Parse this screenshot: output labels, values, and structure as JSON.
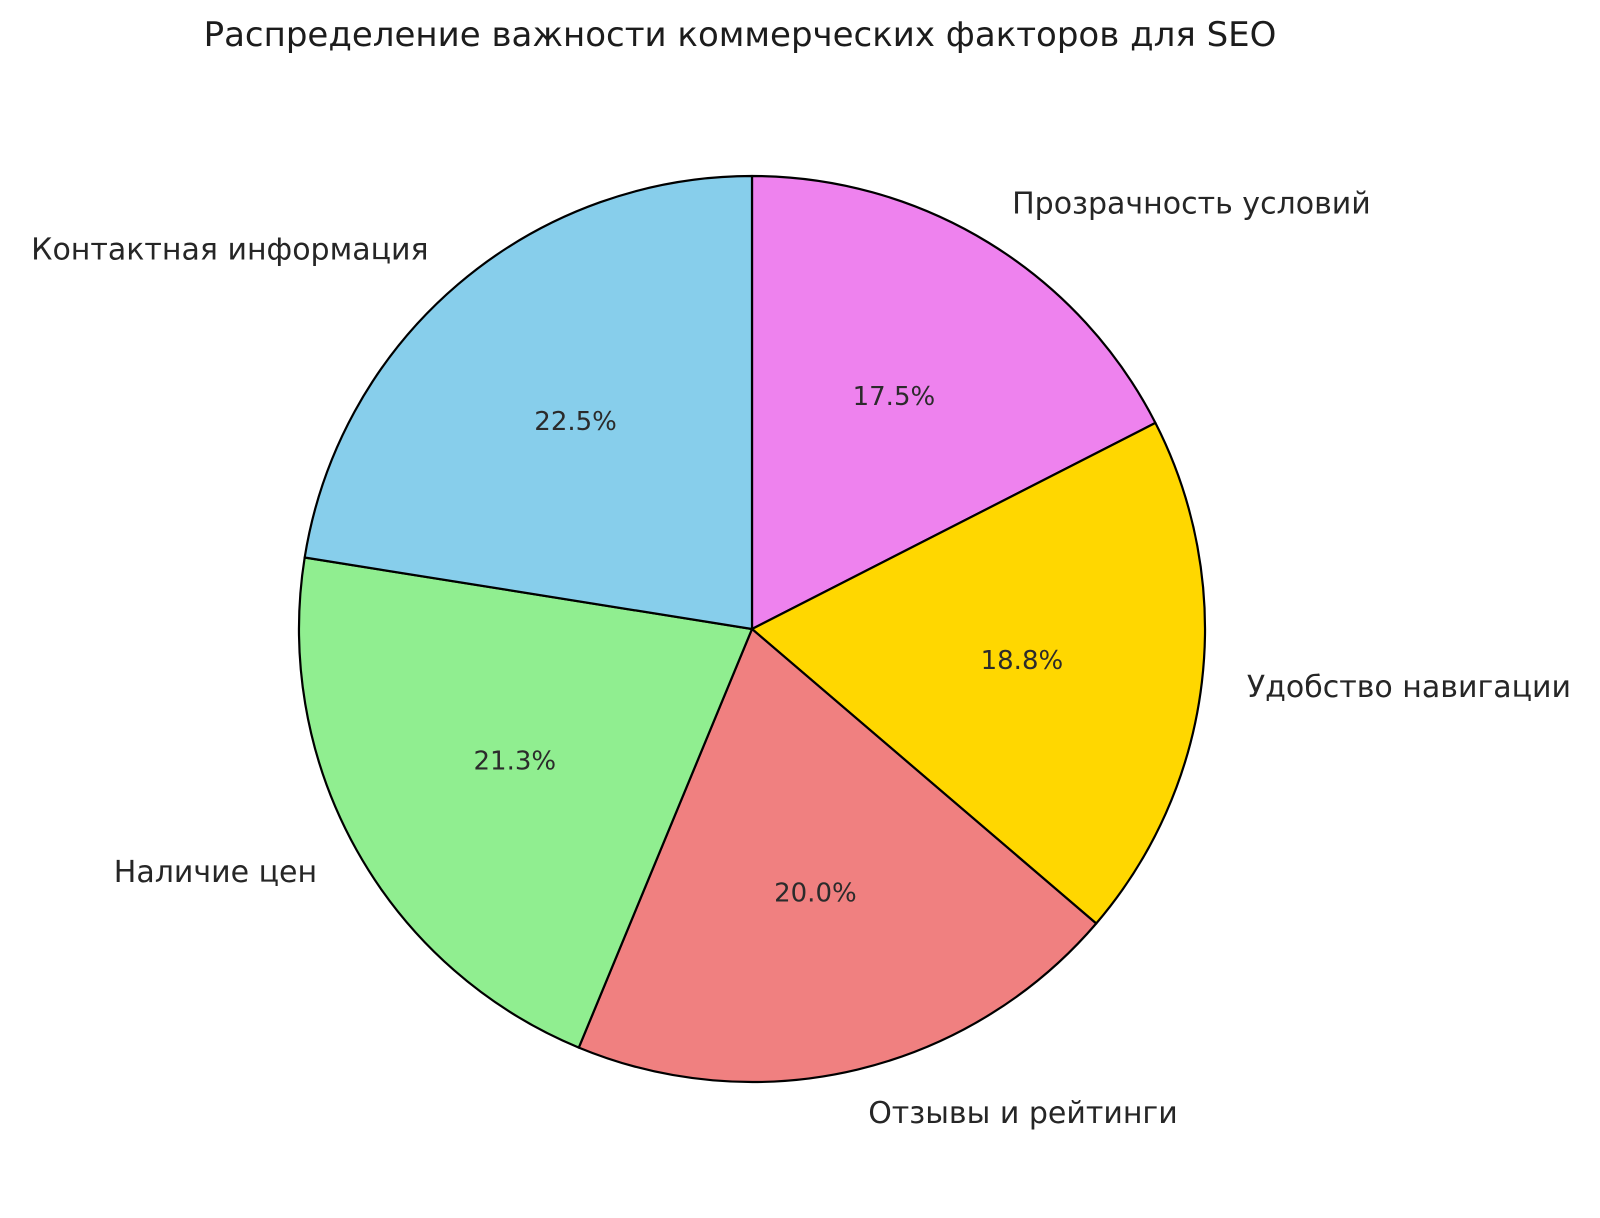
{
  "chart_data": {
    "type": "pie",
    "title": "Распределение важности коммерческих факторов для SEO",
    "slices": [
      {
        "label": "Прозрачность условий",
        "value": 17.5,
        "pct_label": "17.5%",
        "color": "#ee82ee"
      },
      {
        "label": "Удобство навигации",
        "value": 18.8,
        "pct_label": "18.8%",
        "color": "#ffd700"
      },
      {
        "label": "Отзывы и рейтинги",
        "value": 20.0,
        "pct_label": "20.0%",
        "color": "#f08080"
      },
      {
        "label": "Наличие цен",
        "value": 21.3,
        "pct_label": "21.3%",
        "color": "#90ee90"
      },
      {
        "label": "Контактная информация",
        "value": 22.5,
        "pct_label": "22.5%",
        "color": "#87ceeb"
      }
    ],
    "start_angle": 90,
    "direction": "clockwise",
    "edge_color": "#000000",
    "edge_width": 2.2,
    "text_color": "#262626",
    "background": "#ffffff",
    "legend": "none",
    "label_distance": 1.1,
    "pct_distance": 0.6
  }
}
